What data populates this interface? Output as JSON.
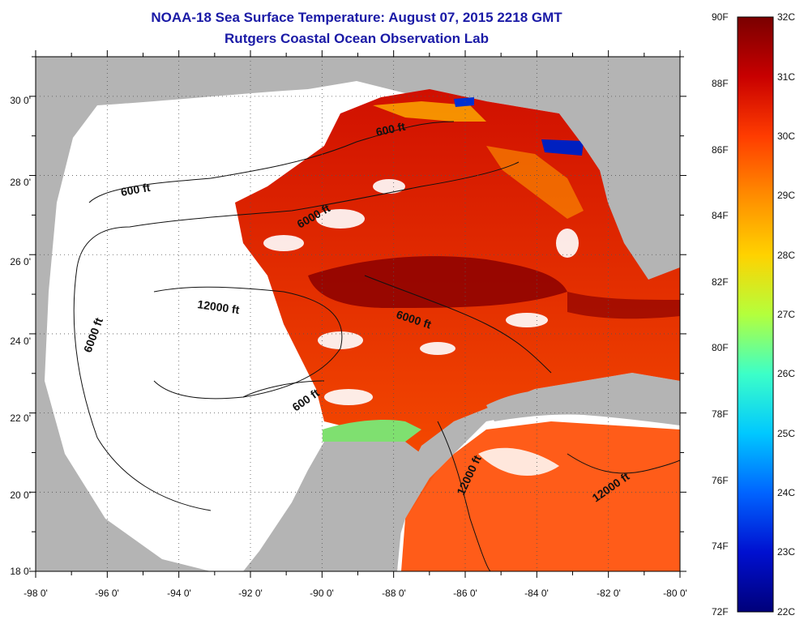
{
  "title": {
    "line1": "NOAA-18 Sea Surface Temperature:  August 07, 2015 2218 GMT",
    "line2": "Rutgers Coastal Ocean Observation Lab"
  },
  "map": {
    "lon_labels": [
      "-98 0'",
      "-96 0'",
      "-94 0'",
      "-92 0'",
      "-90 0'",
      "-88 0'",
      "-86 0'",
      "-84 0'",
      "-82 0'",
      "-80 0'"
    ],
    "lat_labels": [
      "30 0'",
      "28 0'",
      "26 0'",
      "24 0'",
      "22 0'",
      "20 0'",
      "18 0'"
    ],
    "contour_labels": [
      "600 ft",
      "600 ft",
      "6000 ft",
      "6000 ft",
      "6000 ft",
      "12000 ft",
      "600 ft",
      "12000 ft",
      "12000 ft"
    ]
  },
  "colorbar": {
    "f_labels": [
      "90F",
      "88F",
      "86F",
      "84F",
      "82F",
      "80F",
      "78F",
      "76F",
      "74F",
      "72F"
    ],
    "c_labels": [
      "32C",
      "31C",
      "30C",
      "29C",
      "28C",
      "27C",
      "26C",
      "25C",
      "24C",
      "23C",
      "22C"
    ],
    "colors": [
      "#7a0000",
      "#c80000",
      "#ff3c00",
      "#ff8c00",
      "#ffd200",
      "#b4ff3c",
      "#3cffc8",
      "#00c8ff",
      "#0064ff",
      "#0010d0",
      "#00007a"
    ]
  },
  "colors": {
    "land": "#b4b4b4",
    "no_data": "#ffffff",
    "title": "#1a1aa6"
  }
}
